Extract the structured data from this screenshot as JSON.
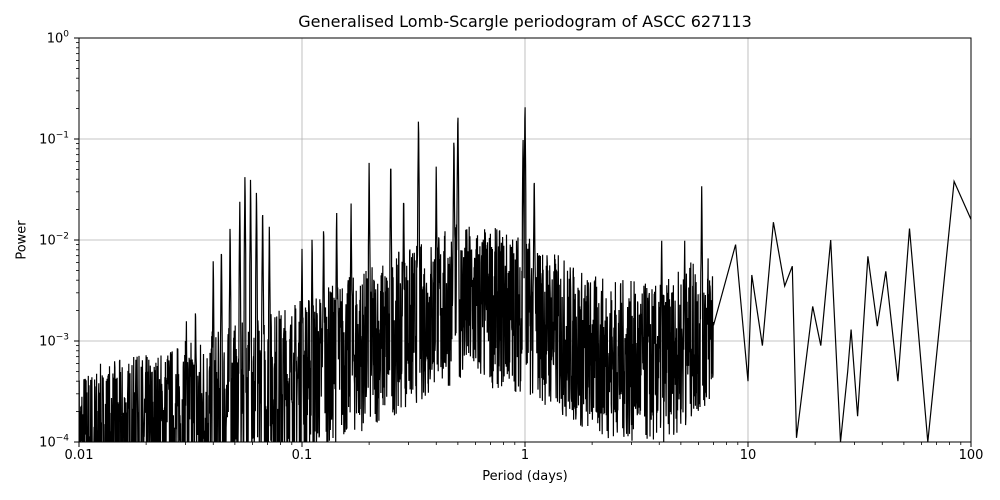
{
  "chart_data": {
    "type": "line",
    "title": "Generalised Lomb-Scargle periodogram of ASCC 627113",
    "xlabel": "Period (days)",
    "ylabel": "Power",
    "xscale": "log",
    "yscale": "log",
    "xlim": [
      0.01,
      100
    ],
    "ylim": [
      0.0001,
      1
    ],
    "grid": true,
    "legend": null,
    "x_ticks": [
      {
        "value": 0.01,
        "label": "0.01"
      },
      {
        "value": 0.1,
        "label": "0.1"
      },
      {
        "value": 1,
        "label": "1"
      },
      {
        "value": 10,
        "label": "10"
      },
      {
        "value": 100,
        "label": "100"
      }
    ],
    "y_ticks": [
      {
        "value": 1,
        "base": "10",
        "exp": "0"
      },
      {
        "value": 0.1,
        "base": "10",
        "exp": "−1"
      },
      {
        "value": 0.01,
        "base": "10",
        "exp": "−2"
      },
      {
        "value": 0.001,
        "base": "10",
        "exp": "−3"
      },
      {
        "value": 0.0001,
        "base": "10",
        "exp": "−4"
      }
    ],
    "line_color": "#000000",
    "grid_color": "#b0b0b0",
    "peaks": [
      {
        "x": 1.0,
        "y": 0.25
      },
      {
        "x": 0.5,
        "y": 0.21
      },
      {
        "x": 0.333,
        "y": 0.18
      },
      {
        "x": 0.25,
        "y": 0.07
      },
      {
        "x": 0.2,
        "y": 0.06
      },
      {
        "x": 0.0555,
        "y": 0.047
      },
      {
        "x": 0.0588,
        "y": 0.042
      },
      {
        "x": 0.0625,
        "y": 0.036
      },
      {
        "x": 0.0526,
        "y": 0.026
      },
      {
        "x": 0.0666,
        "y": 0.024
      },
      {
        "x": 0.0714,
        "y": 0.015
      },
      {
        "x": 0.0476,
        "y": 0.015
      },
      {
        "x": 0.125,
        "y": 0.016
      },
      {
        "x": 0.143,
        "y": 0.021
      },
      {
        "x": 0.166,
        "y": 0.023
      },
      {
        "x": 0.111,
        "y": 0.012
      },
      {
        "x": 0.1,
        "y": 0.009
      },
      {
        "x": 0.2857,
        "y": 0.032
      },
      {
        "x": 0.4,
        "y": 0.055
      },
      {
        "x": 0.6667,
        "y": 0.01
      },
      {
        "x": 1.1,
        "y": 0.05
      },
      {
        "x": 0.48,
        "y": 0.12
      },
      {
        "x": 0.98,
        "y": 0.12
      },
      {
        "x": 6.2,
        "y": 0.038
      },
      {
        "x": 4.1,
        "y": 0.012
      },
      {
        "x": 5.2,
        "y": 0.01
      },
      {
        "x": 0.0435,
        "y": 0.01
      },
      {
        "x": 0.04,
        "y": 0.007
      },
      {
        "x": 0.0333,
        "y": 0.0025
      },
      {
        "x": 0.0303,
        "y": 0.0016
      },
      {
        "x": 0.025,
        "y": 0.0009
      },
      {
        "x": 0.0182,
        "y": 0.00087
      }
    ],
    "long_period_lobes": [
      {
        "x": 8.8,
        "y": 0.009
      },
      {
        "x": 10.4,
        "y": 0.0045
      },
      {
        "x": 13.0,
        "y": 0.015
      },
      {
        "x": 15.8,
        "y": 0.0055
      },
      {
        "x": 19.5,
        "y": 0.0022
      },
      {
        "x": 23.5,
        "y": 0.01
      },
      {
        "x": 29.0,
        "y": 0.0013
      },
      {
        "x": 34.5,
        "y": 0.0069
      },
      {
        "x": 41.5,
        "y": 0.0049
      },
      {
        "x": 53.0,
        "y": 0.013
      },
      {
        "x": 84.0,
        "y": 0.038
      }
    ],
    "long_period_troughs": [
      {
        "x": 10.0,
        "y": 0.0004
      },
      {
        "x": 11.6,
        "y": 0.0009
      },
      {
        "x": 14.6,
        "y": 0.0035
      },
      {
        "x": 16.5,
        "y": 0.00011
      },
      {
        "x": 21.2,
        "y": 0.0009
      },
      {
        "x": 26.0,
        "y": 0.0001
      },
      {
        "x": 28.0,
        "y": 0.0005
      },
      {
        "x": 31.0,
        "y": 0.00018
      },
      {
        "x": 38.0,
        "y": 0.0014
      },
      {
        "x": 47.0,
        "y": 0.0004
      },
      {
        "x": 64.0,
        "y": 0.0001
      },
      {
        "x": 100.0,
        "y": 0.016
      }
    ],
    "noise_floor_envelope": [
      {
        "x": 0.01,
        "y": 0.00018
      },
      {
        "x": 0.02,
        "y": 0.00025
      },
      {
        "x": 0.05,
        "y": 0.0005
      },
      {
        "x": 0.1,
        "y": 0.0009
      },
      {
        "x": 0.2,
        "y": 0.0018
      },
      {
        "x": 0.5,
        "y": 0.005
      },
      {
        "x": 1.0,
        "y": 0.004
      },
      {
        "x": 2.0,
        "y": 0.0015
      },
      {
        "x": 4.0,
        "y": 0.0012
      },
      {
        "x": 7.0,
        "y": 0.003
      }
    ]
  }
}
